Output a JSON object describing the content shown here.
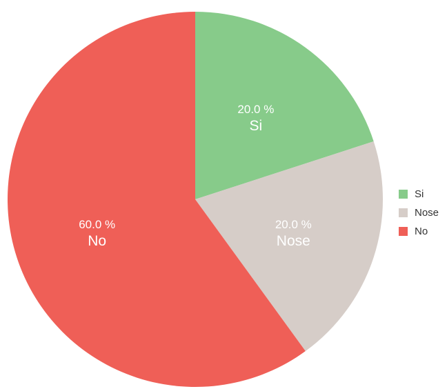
{
  "chart_data": {
    "type": "pie",
    "title": "",
    "start_angle_deg": 0,
    "direction": "clockwise",
    "legend_position": "right",
    "slices": [
      {
        "name": "Si",
        "value": 20.0,
        "label": "20.0 %",
        "color": "#87cb8a"
      },
      {
        "name": "Nose",
        "value": 20.0,
        "label": "20.0 %",
        "color": "#d6cdc8"
      },
      {
        "name": "No",
        "value": 60.0,
        "label": "60.0 %",
        "color": "#ef5f57"
      }
    ]
  }
}
